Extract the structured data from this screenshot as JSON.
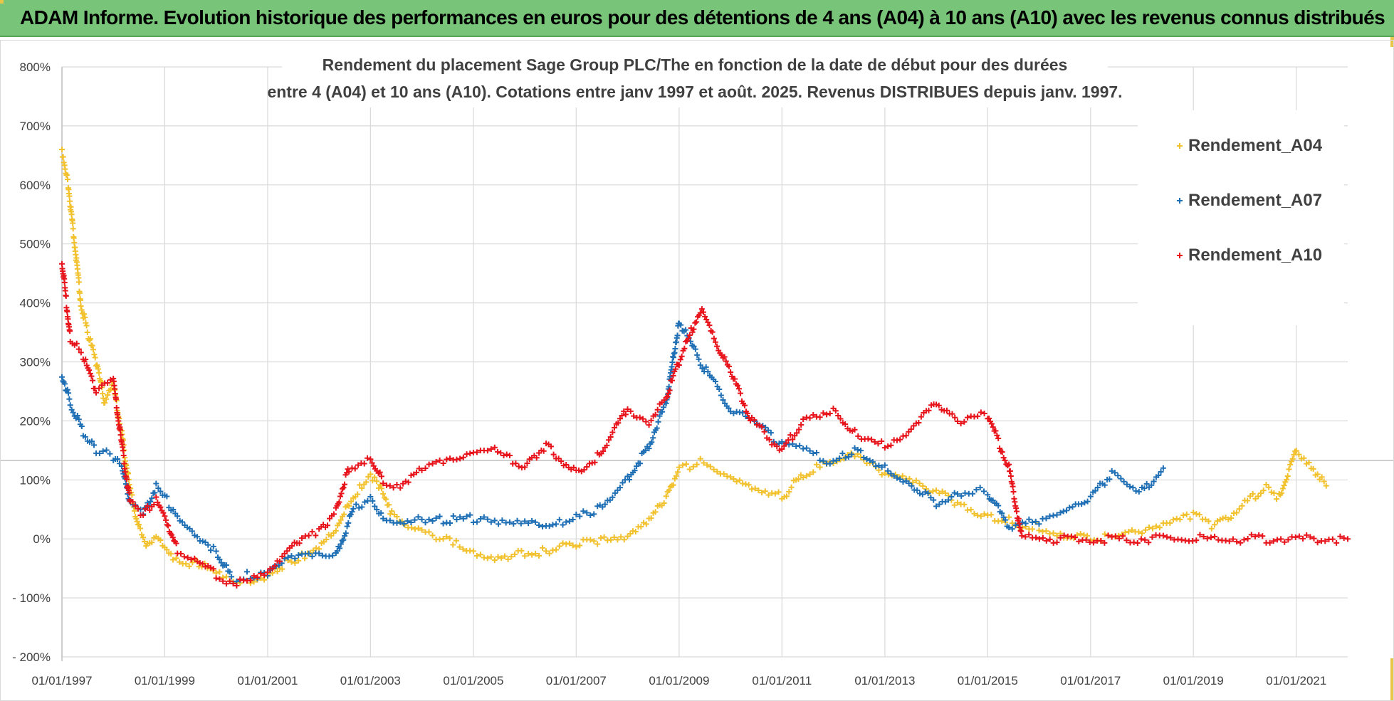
{
  "banner": {
    "title": "ADAM Informe. Evolution historique des performances en euros pour des détentions de 4 ans (A04) à 10 ans (A10) avec les revenus connus distribués"
  },
  "colors": {
    "banner_bg": "#78c57a",
    "A04": "#f2c12e",
    "A07": "#1f6fb5",
    "A10": "#e8141c",
    "grid": "#d9d9d9"
  },
  "chart_data": {
    "type": "scatter",
    "title_lines": [
      "Rendement du placement Sage Group PLC/The en fonction de la date de début pour des durées",
      "entre 4 (A04) et 10 ans (A10).  Cotations entre janv 1997 et août. 2025. Revenus DISTRIBUES depuis janv. 1997."
    ],
    "xlabel": "",
    "ylabel": "",
    "x_range": [
      "1997-01-01",
      "2022-01-01"
    ],
    "ylim": [
      -200,
      800
    ],
    "y_ticks": [
      -200,
      -100,
      0,
      100,
      200,
      300,
      400,
      500,
      600,
      700,
      800
    ],
    "y_tick_labels": [
      "- 200%",
      "- 100%",
      "0%",
      "100%",
      "200%",
      "300%",
      "400%",
      "500%",
      "600%",
      "700%",
      "800%"
    ],
    "x_ticks": [
      "1997-01-01",
      "1999-01-01",
      "2001-01-01",
      "2003-01-01",
      "2005-01-01",
      "2007-01-01",
      "2009-01-01",
      "2011-01-01",
      "2013-01-01",
      "2015-01-01",
      "2017-01-01",
      "2019-01-01",
      "2021-01-01"
    ],
    "x_tick_labels": [
      "01/01/1997",
      "01/01/1999",
      "01/01/2001",
      "01/01/2003",
      "01/01/2005",
      "01/01/2007",
      "01/01/2009",
      "01/01/2011",
      "01/01/2013",
      "01/01/2015",
      "01/01/2017",
      "01/01/2019",
      "01/01/2021"
    ],
    "grid": true,
    "reference_line_y": 133,
    "legend_position": "top-right",
    "marker": "+",
    "series": [
      {
        "name": "Rendement_A04",
        "color": "#f2c12e",
        "points": [
          [
            "1997-01-01",
            660
          ],
          [
            "1997-02-15",
            600
          ],
          [
            "1997-04-01",
            500
          ],
          [
            "1997-05-15",
            400
          ],
          [
            "1997-07-01",
            350
          ],
          [
            "1997-09-01",
            300
          ],
          [
            "1997-11-01",
            230
          ],
          [
            "1998-01-01",
            260
          ],
          [
            "1998-03-01",
            180
          ],
          [
            "1998-05-01",
            80
          ],
          [
            "1998-07-01",
            20
          ],
          [
            "1998-09-01",
            -10
          ],
          [
            "1998-11-01",
            10
          ],
          [
            "1999-01-01",
            -10
          ],
          [
            "1999-03-01",
            -30
          ],
          [
            "1999-06-01",
            -40
          ],
          [
            "1999-09-01",
            -40
          ],
          [
            "2000-01-01",
            -60
          ],
          [
            "2000-05-01",
            -75
          ],
          [
            "2000-09-01",
            -75
          ],
          [
            "2001-01-01",
            -70
          ],
          [
            "2001-05-01",
            -40
          ],
          [
            "2001-09-01",
            -30
          ],
          [
            "2002-01-01",
            -10
          ],
          [
            "2002-05-01",
            20
          ],
          [
            "2002-08-01",
            60
          ],
          [
            "2002-11-01",
            90
          ],
          [
            "2003-01-01",
            110
          ],
          [
            "2003-03-01",
            90
          ],
          [
            "2003-06-01",
            40
          ],
          [
            "2003-09-01",
            20
          ],
          [
            "2004-01-01",
            10
          ],
          [
            "2004-06-01",
            0
          ],
          [
            "2004-09-01",
            -10
          ],
          [
            "2005-01-01",
            -20
          ],
          [
            "2005-06-01",
            -30
          ],
          [
            "2006-01-01",
            -25
          ],
          [
            "2006-06-01",
            -20
          ],
          [
            "2007-01-01",
            -10
          ],
          [
            "2007-06-01",
            -5
          ],
          [
            "2008-01-01",
            0
          ],
          [
            "2008-06-01",
            30
          ],
          [
            "2008-10-01",
            70
          ],
          [
            "2009-01-01",
            120
          ],
          [
            "2009-06-01",
            130
          ],
          [
            "2010-01-01",
            110
          ],
          [
            "2010-06-01",
            90
          ],
          [
            "2011-01-01",
            70
          ],
          [
            "2011-06-01",
            110
          ],
          [
            "2012-01-01",
            130
          ],
          [
            "2012-06-01",
            140
          ],
          [
            "2013-01-01",
            110
          ],
          [
            "2013-06-01",
            100
          ],
          [
            "2014-01-01",
            80
          ],
          [
            "2014-06-01",
            60
          ],
          [
            "2015-01-01",
            40
          ],
          [
            "2015-06-01",
            30
          ],
          [
            "2016-01-01",
            20
          ],
          [
            "2016-06-01",
            10
          ],
          [
            "2017-01-01",
            0
          ],
          [
            "2017-06-01",
            5
          ],
          [
            "2018-01-01",
            10
          ],
          [
            "2018-06-01",
            20
          ],
          [
            "2019-01-01",
            40
          ],
          [
            "2019-06-01",
            20
          ],
          [
            "2020-01-01",
            60
          ],
          [
            "2020-06-01",
            90
          ],
          [
            "2020-09-01",
            70
          ],
          [
            "2021-01-01",
            150
          ],
          [
            "2021-04-01",
            130
          ],
          [
            "2021-08-01",
            90
          ]
        ]
      },
      {
        "name": "Rendement_A07",
        "color": "#1f6fb5",
        "points": [
          [
            "1997-01-01",
            280
          ],
          [
            "1997-03-01",
            230
          ],
          [
            "1997-06-01",
            180
          ],
          [
            "1997-09-01",
            150
          ],
          [
            "1998-01-01",
            140
          ],
          [
            "1998-03-01",
            120
          ],
          [
            "1998-05-01",
            60
          ],
          [
            "1998-08-01",
            40
          ],
          [
            "1998-11-01",
            90
          ],
          [
            "1999-01-01",
            70
          ],
          [
            "1999-04-01",
            40
          ],
          [
            "1999-08-01",
            10
          ],
          [
            "2000-01-01",
            -20
          ],
          [
            "2000-05-01",
            -70
          ],
          [
            "2000-09-01",
            -60
          ],
          [
            "2001-01-01",
            -60
          ],
          [
            "2001-05-01",
            -40
          ],
          [
            "2001-09-01",
            -30
          ],
          [
            "2002-01-01",
            -30
          ],
          [
            "2002-05-01",
            -30
          ],
          [
            "2002-09-01",
            50
          ],
          [
            "2003-01-01",
            70
          ],
          [
            "2003-04-01",
            40
          ],
          [
            "2003-08-01",
            30
          ],
          [
            "2004-01-01",
            35
          ],
          [
            "2004-06-01",
            30
          ],
          [
            "2005-01-01",
            35
          ],
          [
            "2005-06-01",
            25
          ],
          [
            "2006-01-01",
            25
          ],
          [
            "2006-06-01",
            20
          ],
          [
            "2007-01-01",
            35
          ],
          [
            "2007-06-01",
            50
          ],
          [
            "2008-01-01",
            100
          ],
          [
            "2008-06-01",
            160
          ],
          [
            "2008-10-01",
            230
          ],
          [
            "2009-01-01",
            370
          ],
          [
            "2009-06-01",
            300
          ],
          [
            "2010-01-01",
            220
          ],
          [
            "2010-06-01",
            200
          ],
          [
            "2011-01-01",
            160
          ],
          [
            "2011-06-01",
            150
          ],
          [
            "2012-01-01",
            130
          ],
          [
            "2012-06-01",
            150
          ],
          [
            "2013-01-01",
            120
          ],
          [
            "2013-06-01",
            100
          ],
          [
            "2014-01-01",
            60
          ],
          [
            "2014-06-01",
            80
          ],
          [
            "2015-01-01",
            80
          ],
          [
            "2015-06-01",
            20
          ],
          [
            "2016-01-01",
            30
          ],
          [
            "2016-06-01",
            40
          ],
          [
            "2017-01-01",
            70
          ],
          [
            "2017-06-01",
            110
          ],
          [
            "2018-01-01",
            80
          ],
          [
            "2018-06-01",
            120
          ]
        ]
      },
      {
        "name": "Rendement_A10",
        "color": "#e8141c",
        "points": [
          [
            "1997-01-01",
            470
          ],
          [
            "1997-03-01",
            340
          ],
          [
            "1997-06-01",
            310
          ],
          [
            "1997-09-01",
            250
          ],
          [
            "1998-01-01",
            270
          ],
          [
            "1998-03-01",
            160
          ],
          [
            "1998-05-01",
            60
          ],
          [
            "1998-08-01",
            40
          ],
          [
            "1998-11-01",
            70
          ],
          [
            "1999-01-01",
            40
          ],
          [
            "1999-04-01",
            -20
          ],
          [
            "1999-08-01",
            -30
          ],
          [
            "2000-01-01",
            -60
          ],
          [
            "2000-05-01",
            -75
          ],
          [
            "2000-09-01",
            -70
          ],
          [
            "2001-01-01",
            -60
          ],
          [
            "2001-05-01",
            -30
          ],
          [
            "2001-09-01",
            0
          ],
          [
            "2002-01-01",
            10
          ],
          [
            "2002-05-01",
            50
          ],
          [
            "2002-08-01",
            120
          ],
          [
            "2003-01-01",
            140
          ],
          [
            "2003-04-01",
            100
          ],
          [
            "2003-08-01",
            90
          ],
          [
            "2004-01-01",
            120
          ],
          [
            "2004-06-01",
            130
          ],
          [
            "2005-01-01",
            140
          ],
          [
            "2005-06-01",
            150
          ],
          [
            "2006-01-01",
            120
          ],
          [
            "2006-06-01",
            160
          ],
          [
            "2007-01-01",
            110
          ],
          [
            "2007-06-01",
            140
          ],
          [
            "2008-01-01",
            220
          ],
          [
            "2008-06-01",
            200
          ],
          [
            "2008-10-01",
            240
          ],
          [
            "2009-01-01",
            300
          ],
          [
            "2009-06-01",
            390
          ],
          [
            "2010-01-01",
            280
          ],
          [
            "2010-06-01",
            200
          ],
          [
            "2011-01-01",
            150
          ],
          [
            "2011-06-01",
            200
          ],
          [
            "2012-01-01",
            220
          ],
          [
            "2012-06-01",
            180
          ],
          [
            "2013-01-01",
            160
          ],
          [
            "2013-06-01",
            180
          ],
          [
            "2014-01-01",
            230
          ],
          [
            "2014-06-01",
            200
          ],
          [
            "2015-01-01",
            210
          ],
          [
            "2015-06-01",
            120
          ],
          [
            "2015-09-01",
            0
          ],
          [
            "2016-06-01",
            0
          ],
          [
            "2017-06-01",
            0
          ],
          [
            "2018-06-01",
            0
          ],
          [
            "2019-06-01",
            0
          ],
          [
            "2020-06-01",
            0
          ],
          [
            "2021-06-01",
            0
          ],
          [
            "2022-01-01",
            0
          ]
        ]
      }
    ]
  }
}
